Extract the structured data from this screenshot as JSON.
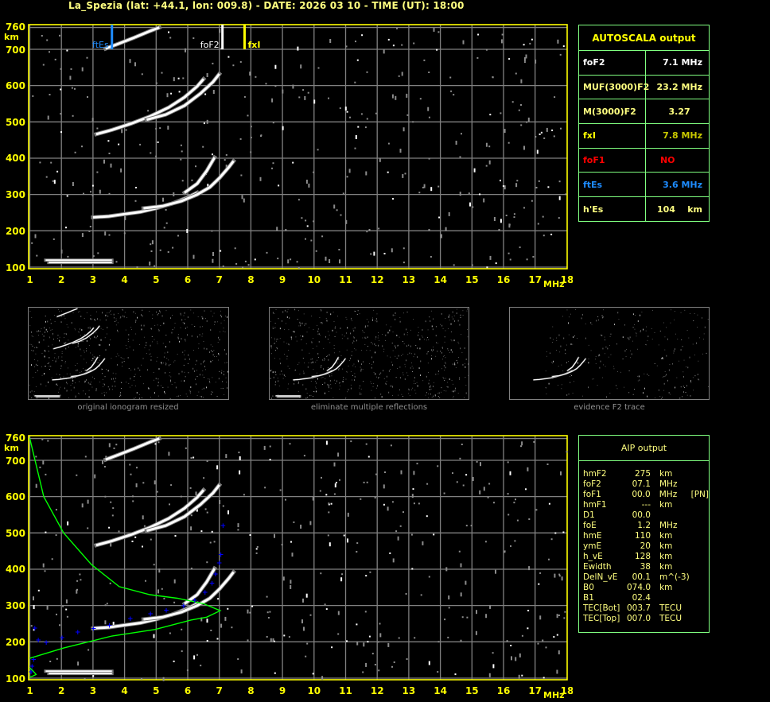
{
  "title": "La_Spezia (lat: +44.1, lon: 009.8) - DATE: 2026 03 10 - TIME (UT): 18:00",
  "autoscala": {
    "header": "AUTOSCALA output",
    "rows": [
      {
        "label": "foF2",
        "value": "7.1 MHz",
        "color": "#ffffff"
      },
      {
        "label": "MUF(3000)F2",
        "value": "23.2 MHz",
        "color": "#ffff80"
      },
      {
        "label": "M(3000)F2",
        "value": "3.27    ",
        "color": "#ffff80"
      },
      {
        "label": "fxI",
        "value": "7.8 MHz",
        "color": "#c8c800",
        "label_color": "#ffff00"
      },
      {
        "label": "foF1",
        "value": "NO         ",
        "color": "#ff0000"
      },
      {
        "label": "ftEs",
        "value": "3.6 MHz",
        "color": "#1e8cff"
      },
      {
        "label": "h'Es",
        "value": "104    km",
        "color": "#ffff80"
      }
    ]
  },
  "aip": {
    "header": "AIP output",
    "rows": [
      {
        "key": "hmF2",
        "value": "275",
        "unit": "km",
        "extra": ""
      },
      {
        "key": "foF2",
        "value": "07.1",
        "unit": "MHz",
        "extra": ""
      },
      {
        "key": "foF1",
        "value": "00.0",
        "unit": "MHz",
        "extra": "[PN]"
      },
      {
        "key": "hmF1",
        "value": "---",
        "unit": "km",
        "extra": ""
      },
      {
        "key": "D1",
        "value": "00.0",
        "unit": "",
        "extra": ""
      },
      {
        "key": "foE",
        "value": "1.2",
        "unit": "MHz",
        "extra": ""
      },
      {
        "key": "hmE",
        "value": "110",
        "unit": "km",
        "extra": ""
      },
      {
        "key": "ymE",
        "value": "20",
        "unit": "km",
        "extra": ""
      },
      {
        "key": "h_vE",
        "value": "128",
        "unit": "km",
        "extra": ""
      },
      {
        "key": "Ewidth",
        "value": "38",
        "unit": "km",
        "extra": ""
      },
      {
        "key": "DelN_vE",
        "value": "00.1",
        "unit": "m^(-3)",
        "extra": ""
      },
      {
        "key": "B0",
        "value": "074.0",
        "unit": "km",
        "extra": ""
      },
      {
        "key": "B1",
        "value": "02.4",
        "unit": "",
        "extra": ""
      },
      {
        "key": "TEC[Bot]",
        "value": "003.7",
        "unit": "TECU",
        "extra": ""
      },
      {
        "key": "TEC[Top]",
        "value": "007.0",
        "unit": "TECU",
        "extra": ""
      }
    ]
  },
  "thumbnails": [
    {
      "label": "original ionogram resized"
    },
    {
      "label": "eliminate multiple reflections"
    },
    {
      "label": "evidence F2 trace"
    }
  ],
  "colors": {
    "axis": "#ffff00",
    "grid": "#808080",
    "trace": "#ffffff",
    "profile": "#00ff00",
    "aip_points": "#0000ff",
    "ftEs": "#1e8cff",
    "foF2": "#ffffff",
    "fxI": "#ffff00"
  },
  "chart_data": [
    {
      "type": "scatter",
      "xlabel": "MHz",
      "ylabel": "km",
      "xlim": [
        1,
        18
      ],
      "ylim": [
        100,
        760
      ],
      "xticks": [
        "1",
        "2",
        "3",
        "4",
        "5",
        "6",
        "7",
        "8",
        "9",
        "10",
        "11",
        "12",
        "13",
        "14",
        "15",
        "16",
        "17",
        "18"
      ],
      "yticks": [
        "760",
        "700",
        "600",
        "500",
        "400",
        "300",
        "200",
        "100"
      ],
      "grid": true,
      "markers": [
        {
          "name": "ftEs",
          "x": 3.6,
          "color": "#1e8cff"
        },
        {
          "name": "foF2",
          "x": 7.1,
          "color": "#ffffff"
        },
        {
          "name": "fxI",
          "x": 7.8,
          "color": "#ffff00"
        }
      ],
      "traces": [
        {
          "points": [
            [
              3.0,
              237
            ],
            [
              3.5,
              240
            ],
            [
              4.0,
              246
            ],
            [
              4.5,
              252
            ],
            [
              5.0,
              262
            ],
            [
              5.5,
              275
            ],
            [
              6.0,
              292
            ],
            [
              6.3,
              305
            ]
          ]
        },
        {
          "points": [
            [
              4.6,
              262
            ],
            [
              5.2,
              268
            ],
            [
              5.8,
              282
            ],
            [
              6.3,
              300
            ],
            [
              6.7,
              320
            ],
            [
              7.0,
              345
            ],
            [
              7.3,
              375
            ],
            [
              7.45,
              392
            ]
          ]
        },
        {
          "points": [
            [
              5.9,
              305
            ],
            [
              6.3,
              330
            ],
            [
              6.6,
              365
            ],
            [
              6.85,
              402
            ]
          ]
        },
        {
          "points": [
            [
              3.1,
              466
            ],
            [
              3.6,
              478
            ],
            [
              4.2,
              495
            ],
            [
              4.8,
              515
            ],
            [
              5.4,
              540
            ],
            [
              5.9,
              568
            ],
            [
              6.3,
              598
            ],
            [
              6.5,
              618
            ]
          ]
        },
        {
          "points": [
            [
              4.7,
              506
            ],
            [
              5.3,
              520
            ],
            [
              5.9,
              545
            ],
            [
              6.4,
              578
            ],
            [
              6.8,
              610
            ],
            [
              7.0,
              632
            ]
          ]
        },
        {
          "points": [
            [
              3.4,
              702
            ],
            [
              3.8,
              715
            ],
            [
              4.3,
              732
            ],
            [
              4.8,
              750
            ],
            [
              5.1,
              760
            ]
          ]
        },
        {
          "points": [
            [
              1.5,
              119
            ],
            [
              3.6,
              119
            ]
          ]
        },
        {
          "points": [
            [
              1.6,
              113
            ],
            [
              3.6,
              113
            ]
          ]
        }
      ]
    },
    {
      "type": "line",
      "xlabel": "MHz",
      "ylabel": "km",
      "xlim": [
        1,
        18
      ],
      "ylim": [
        100,
        760
      ],
      "xticks": [
        "1",
        "2",
        "3",
        "4",
        "5",
        "6",
        "7",
        "8",
        "9",
        "10",
        "11",
        "12",
        "13",
        "14",
        "15",
        "16",
        "17",
        "18"
      ],
      "yticks": [
        "760",
        "700",
        "600",
        "500",
        "400",
        "300",
        "200",
        "100"
      ],
      "grid": true,
      "profile": [
        [
          1.0,
          760
        ],
        [
          1.44,
          600
        ],
        [
          2.07,
          500
        ],
        [
          2.95,
          413
        ],
        [
          3.83,
          352
        ],
        [
          4.8,
          330
        ],
        [
          5.67,
          320
        ],
        [
          6.5,
          305
        ],
        [
          7.03,
          286
        ],
        [
          6.6,
          268
        ],
        [
          6.1,
          260
        ],
        [
          4.96,
          234
        ],
        [
          3.6,
          216
        ],
        [
          2.07,
          183
        ],
        [
          1.0,
          155
        ]
      ],
      "e_profile": [
        [
          1.0,
          128
        ],
        [
          1.1,
          120
        ],
        [
          1.2,
          110
        ],
        [
          1.05,
          104
        ],
        [
          1.0,
          103
        ]
      ],
      "virtual_height": [
        [
          1.14,
          238
        ],
        [
          1.25,
          205
        ],
        [
          1.5,
          199
        ],
        [
          2.0,
          212
        ],
        [
          2.5,
          227
        ],
        [
          3.0,
          237
        ],
        [
          3.5,
          246
        ],
        [
          4.16,
          264
        ],
        [
          4.8,
          277
        ],
        [
          5.3,
          287
        ],
        [
          5.85,
          299
        ],
        [
          6.2,
          315
        ],
        [
          6.53,
          336
        ],
        [
          6.75,
          362
        ],
        [
          6.86,
          387
        ],
        [
          6.98,
          417
        ],
        [
          7.03,
          441
        ],
        [
          7.1,
          520
        ]
      ],
      "e_virtual_height": [
        [
          1.1,
          152
        ],
        [
          1.05,
          133
        ],
        [
          1.02,
          118
        ]
      ]
    }
  ]
}
